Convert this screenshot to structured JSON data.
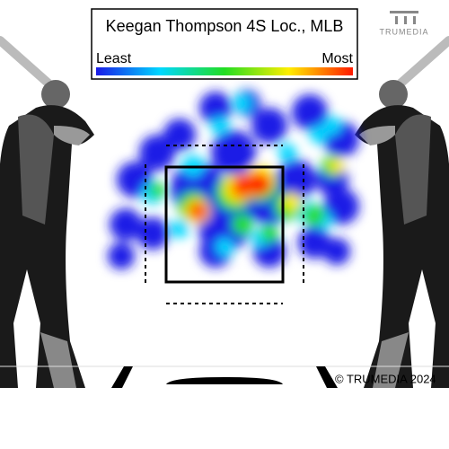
{
  "chart_data": {
    "type": "heatmap",
    "title": "Keegan Thompson 4S Loc., MLB",
    "legend_labels": [
      "Least",
      "Most"
    ],
    "legend_colors": [
      "#1a1ae6",
      "#00d8ff",
      "#22dd22",
      "#ffee00",
      "#ff1a00"
    ],
    "logo": "TRUMEDIA",
    "copyright": "© TRUMEDIA 2024"
  }
}
